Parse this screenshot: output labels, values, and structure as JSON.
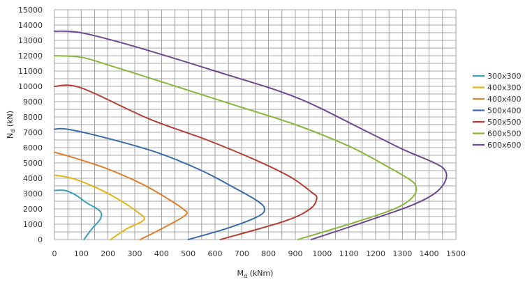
{
  "chart_data": {
    "type": "line",
    "xlabel": {
      "main": "M",
      "sub": "d",
      "unit": " (kNm)"
    },
    "ylabel": {
      "main": "N",
      "sub": "d",
      "unit": " (kN)"
    },
    "xlim": [
      0,
      1500
    ],
    "ylim": [
      0,
      15000
    ],
    "x_ticks": [
      "0",
      "100",
      "200",
      "300",
      "400",
      "500",
      "600",
      "700",
      "800",
      "900",
      "1000",
      "1100",
      "1200",
      "1300",
      "1400",
      "1500"
    ],
    "y_ticks": [
      "0",
      "1000",
      "2000",
      "3000",
      "4000",
      "5000",
      "6000",
      "7000",
      "8000",
      "9000",
      "10000",
      "11000",
      "12000",
      "13000",
      "14000",
      "15000"
    ],
    "grid": true,
    "legend_position": "right",
    "series": [
      {
        "name": "300x300",
        "color": "#3a9fb6",
        "points": [
          [
            110,
            0
          ],
          [
            140,
            700
          ],
          [
            170,
            1300
          ],
          [
            175,
            1700
          ],
          [
            160,
            2000
          ],
          [
            120,
            2400
          ],
          [
            80,
            2900
          ],
          [
            40,
            3200
          ],
          [
            0,
            3200
          ]
        ]
      },
      {
        "name": "400x300",
        "color": "#e2b41c",
        "points": [
          [
            210,
            0
          ],
          [
            270,
            700
          ],
          [
            335,
            1300
          ],
          [
            310,
            1800
          ],
          [
            260,
            2400
          ],
          [
            190,
            3100
          ],
          [
            100,
            3800
          ],
          [
            40,
            4100
          ],
          [
            0,
            4200
          ]
        ]
      },
      {
        "name": "400x400",
        "color": "#e07f2e",
        "points": [
          [
            320,
            0
          ],
          [
            400,
            700
          ],
          [
            490,
            1600
          ],
          [
            480,
            2000
          ],
          [
            420,
            2700
          ],
          [
            330,
            3600
          ],
          [
            200,
            4600
          ],
          [
            80,
            5300
          ],
          [
            0,
            5700
          ]
        ]
      },
      {
        "name": "500x400",
        "color": "#3c6aa8",
        "points": [
          [
            500,
            0
          ],
          [
            640,
            700
          ],
          [
            760,
            1500
          ],
          [
            785,
            2000
          ],
          [
            760,
            2500
          ],
          [
            680,
            3300
          ],
          [
            550,
            4500
          ],
          [
            380,
            5700
          ],
          [
            200,
            6600
          ],
          [
            50,
            7200
          ],
          [
            0,
            7200
          ]
        ]
      },
      {
        "name": "500x500",
        "color": "#b23e37",
        "points": [
          [
            620,
            0
          ],
          [
            860,
            1200
          ],
          [
            955,
            2000
          ],
          [
            980,
            2700
          ],
          [
            960,
            3100
          ],
          [
            880,
            4100
          ],
          [
            750,
            5200
          ],
          [
            570,
            6500
          ],
          [
            350,
            7900
          ],
          [
            100,
            9900
          ],
          [
            0,
            10000
          ]
        ]
      },
      {
        "name": "600x500",
        "color": "#8cb43c",
        "points": [
          [
            910,
            0
          ],
          [
            1100,
            1000
          ],
          [
            1270,
            2000
          ],
          [
            1340,
            2800
          ],
          [
            1350,
            3500
          ],
          [
            1320,
            4000
          ],
          [
            1220,
            5000
          ],
          [
            1100,
            6100
          ],
          [
            900,
            7500
          ],
          [
            650,
            8900
          ],
          [
            400,
            10300
          ],
          [
            200,
            11400
          ],
          [
            100,
            11900
          ],
          [
            0,
            12000
          ]
        ]
      },
      {
        "name": "600x600",
        "color": "#6b4a8e",
        "points": [
          [
            960,
            0
          ],
          [
            1150,
            1100
          ],
          [
            1330,
            2200
          ],
          [
            1420,
            3000
          ],
          [
            1460,
            3800
          ],
          [
            1460,
            4500
          ],
          [
            1420,
            5000
          ],
          [
            1300,
            5900
          ],
          [
            1150,
            7200
          ],
          [
            900,
            9300
          ],
          [
            600,
            11000
          ],
          [
            300,
            12600
          ],
          [
            100,
            13500
          ],
          [
            0,
            13600
          ]
        ]
      }
    ]
  }
}
